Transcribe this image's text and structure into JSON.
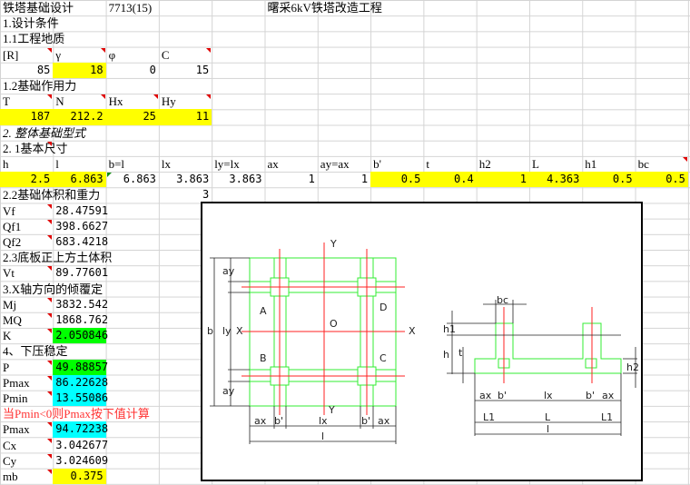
{
  "colors": {
    "yellow": "#ffff00",
    "green": "#00ff00",
    "cyan": "#00ffff",
    "note_red": "#ff3333",
    "diagram_green": "#33ee33",
    "diagram_red": "#ff2222"
  },
  "rows": [
    [
      "铁塔基础设计",
      "",
      "7713(15)",
      "",
      "",
      "曙采6kV铁塔改造工程"
    ],
    [
      "1.设计条件"
    ],
    [
      "1.1工程地质"
    ],
    [
      "[R]",
      "γ",
      "φ",
      "C"
    ],
    [
      "85",
      "18",
      "0",
      "15"
    ],
    [
      "1.2基础作用力"
    ],
    [
      "T",
      "N",
      "Hx",
      "Hy"
    ],
    [
      "187",
      "212.2",
      "25",
      "11"
    ],
    [
      "2. 整体基础型式"
    ],
    [
      "2. 1基本尺寸"
    ],
    [
      "h",
      "l",
      "b=l",
      "lx",
      "ly=lx",
      "ax",
      "ay=ax",
      "b'",
      "t",
      "h2",
      "L",
      "h1",
      "bc"
    ],
    [
      "2.5",
      "6.863",
      "6.863",
      "3.863",
      "3.863",
      "1",
      "1",
      "0.5",
      "0.4",
      "1",
      "4.363",
      "0.5",
      "0.5"
    ],
    [
      "2.2基础体积和重力",
      "",
      "",
      "3"
    ],
    [
      "Vf",
      "28.47591"
    ],
    [
      "Qf1",
      "398.6627"
    ],
    [
      "Qf2",
      "683.4218"
    ],
    [
      "2.3底板正上方土体积"
    ],
    [
      "Vt",
      "89.77601"
    ],
    [
      "3.X轴方向的倾覆定"
    ],
    [
      "Mj",
      "3832.542"
    ],
    [
      "MQ",
      "1868.762"
    ],
    [
      "K",
      "2.050846"
    ],
    [
      "4、下压稳定"
    ],
    [
      "P",
      "49.88857"
    ],
    [
      "Pmax",
      "86.22628"
    ],
    [
      "Pmin",
      "13.55086"
    ],
    [
      "当Pmin<0则Pmax按下值计算"
    ],
    [
      "Pmax",
      "94.72238"
    ],
    [
      "Cx",
      "3.042677"
    ],
    [
      "Cy",
      "3.024609"
    ],
    [
      "mb",
      "0.375"
    ]
  ],
  "fills": {
    "4-1": "yellow",
    "7-0": "yellow",
    "7-1": "yellow",
    "7-2": "yellow",
    "7-3": "yellow",
    "11-0": "yellow",
    "11-1": "yellow",
    "11-7": "yellow",
    "11-8": "yellow",
    "11-9": "yellow",
    "11-10": "yellow",
    "11-11": "yellow",
    "11-12": "yellow",
    "21-1": "green",
    "23-1": "green",
    "24-1": "cyan",
    "25-1": "cyan",
    "27-1": "cyan",
    "30-1": "yellow"
  },
  "diagram": {
    "plan": {
      "Y_top": "Y",
      "Y_bottom": "Y",
      "X_left": "X",
      "X_right": "X",
      "O": "O",
      "A": "A",
      "B": "B",
      "C": "C",
      "D": "D",
      "b": "b",
      "ly": "ly",
      "ay": "ay",
      "bp": "b'",
      "ax": "ax",
      "lx": "lx",
      "l": "l"
    },
    "section": {
      "bc": "bc",
      "h1": "h1",
      "h": "h",
      "t": "t",
      "h2": "h2",
      "ax": "ax",
      "bp": "b'",
      "lx": "lx",
      "L1": "L1",
      "L": "L",
      "l": "l"
    }
  }
}
